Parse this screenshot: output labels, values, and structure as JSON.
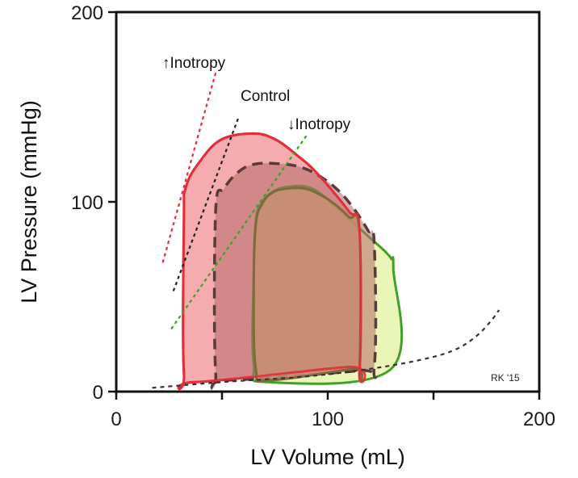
{
  "chart_data": {
    "type": "line",
    "xlabel": "LV Volume (mL)",
    "ylabel": "LV Pressure (mmHg)",
    "xlim": [
      0,
      200
    ],
    "ylim": [
      0,
      200
    ],
    "x_ticks": [
      0,
      50,
      100,
      150,
      200
    ],
    "x_tick_labels": [
      "0",
      "",
      "100",
      "",
      "200"
    ],
    "y_ticks": [
      0,
      100,
      200
    ],
    "y_tick_labels": [
      "0",
      "100",
      "200"
    ],
    "grid": false,
    "annotations": {
      "inc_inotropy": "↑Inotropy",
      "control": "Control",
      "dec_inotropy": "↓Inotropy",
      "credit": "RK '15"
    },
    "series": [
      {
        "key": "increased",
        "color": "#e0303a",
        "fill": "#f4a3a6",
        "style": "solid",
        "loop": [
          [
            37,
            5
          ],
          [
            110,
            13
          ],
          [
            115,
            10
          ],
          [
            115,
            85
          ],
          [
            110,
            95
          ],
          [
            95,
            115
          ],
          [
            85,
            125
          ],
          [
            75,
            133
          ],
          [
            65,
            136
          ],
          [
            50,
            133
          ],
          [
            40,
            122
          ],
          [
            33,
            108
          ],
          [
            32,
            90
          ],
          [
            32,
            10
          ]
        ]
      },
      {
        "key": "control",
        "color": "#5a3a3a",
        "fill": "#b46a6a",
        "style": "dashed",
        "loop": [
          [
            52,
            6
          ],
          [
            115,
            11
          ],
          [
            122,
            13
          ],
          [
            122,
            78
          ],
          [
            119,
            85
          ],
          [
            112,
            97
          ],
          [
            105,
            106
          ],
          [
            97,
            113
          ],
          [
            88,
            118
          ],
          [
            78,
            120
          ],
          [
            66,
            120
          ],
          [
            58,
            116
          ],
          [
            51,
            107
          ],
          [
            47,
            95
          ],
          [
            47,
            10
          ]
        ]
      },
      {
        "key": "decreased",
        "color": "#3fa02a",
        "fill": "#e8f5b0",
        "style": "solid",
        "loop": [
          [
            72,
            5
          ],
          [
            130,
            12
          ],
          [
            131,
            65
          ],
          [
            130,
            70
          ],
          [
            127,
            74
          ],
          [
            121,
            80
          ],
          [
            115,
            86
          ],
          [
            106,
            95
          ],
          [
            97,
            104
          ],
          [
            90,
            108
          ],
          [
            82,
            108
          ],
          [
            75,
            106
          ],
          [
            69,
            100
          ],
          [
            66,
            90
          ],
          [
            65,
            60
          ],
          [
            65,
            15
          ]
        ]
      },
      {
        "key": "overlap",
        "color": "#7d6b3a",
        "fill": "#c68a72",
        "style": "solid",
        "loop": [
          [
            72,
            6
          ],
          [
            112,
            12
          ],
          [
            115,
            12
          ],
          [
            115,
            85
          ],
          [
            110,
            92
          ],
          [
            103,
            99
          ],
          [
            96,
            104
          ],
          [
            89,
            107
          ],
          [
            81,
            107
          ],
          [
            74,
            105
          ],
          [
            69,
            99
          ],
          [
            66,
            88
          ],
          [
            65,
            55
          ],
          [
            66,
            12
          ]
        ]
      }
    ],
    "edpvr": [
      [
        17,
        2
      ],
      [
        50,
        5
      ],
      [
        90,
        8
      ],
      [
        120,
        12
      ],
      [
        145,
        17
      ],
      [
        160,
        22
      ],
      [
        170,
        29
      ],
      [
        177,
        37
      ],
      [
        181,
        43
      ]
    ],
    "espvr": [
      {
        "key": "increased",
        "color": "#e0303a",
        "x": [
          22,
          47
        ],
        "y": [
          68,
          168
        ]
      },
      {
        "key": "control",
        "color": "#222222",
        "x": [
          27,
          58
        ],
        "y": [
          53,
          145
        ]
      },
      {
        "key": "decreased",
        "color": "#3fa02a",
        "x": [
          26,
          90
        ],
        "y": [
          33,
          135
        ]
      }
    ]
  }
}
